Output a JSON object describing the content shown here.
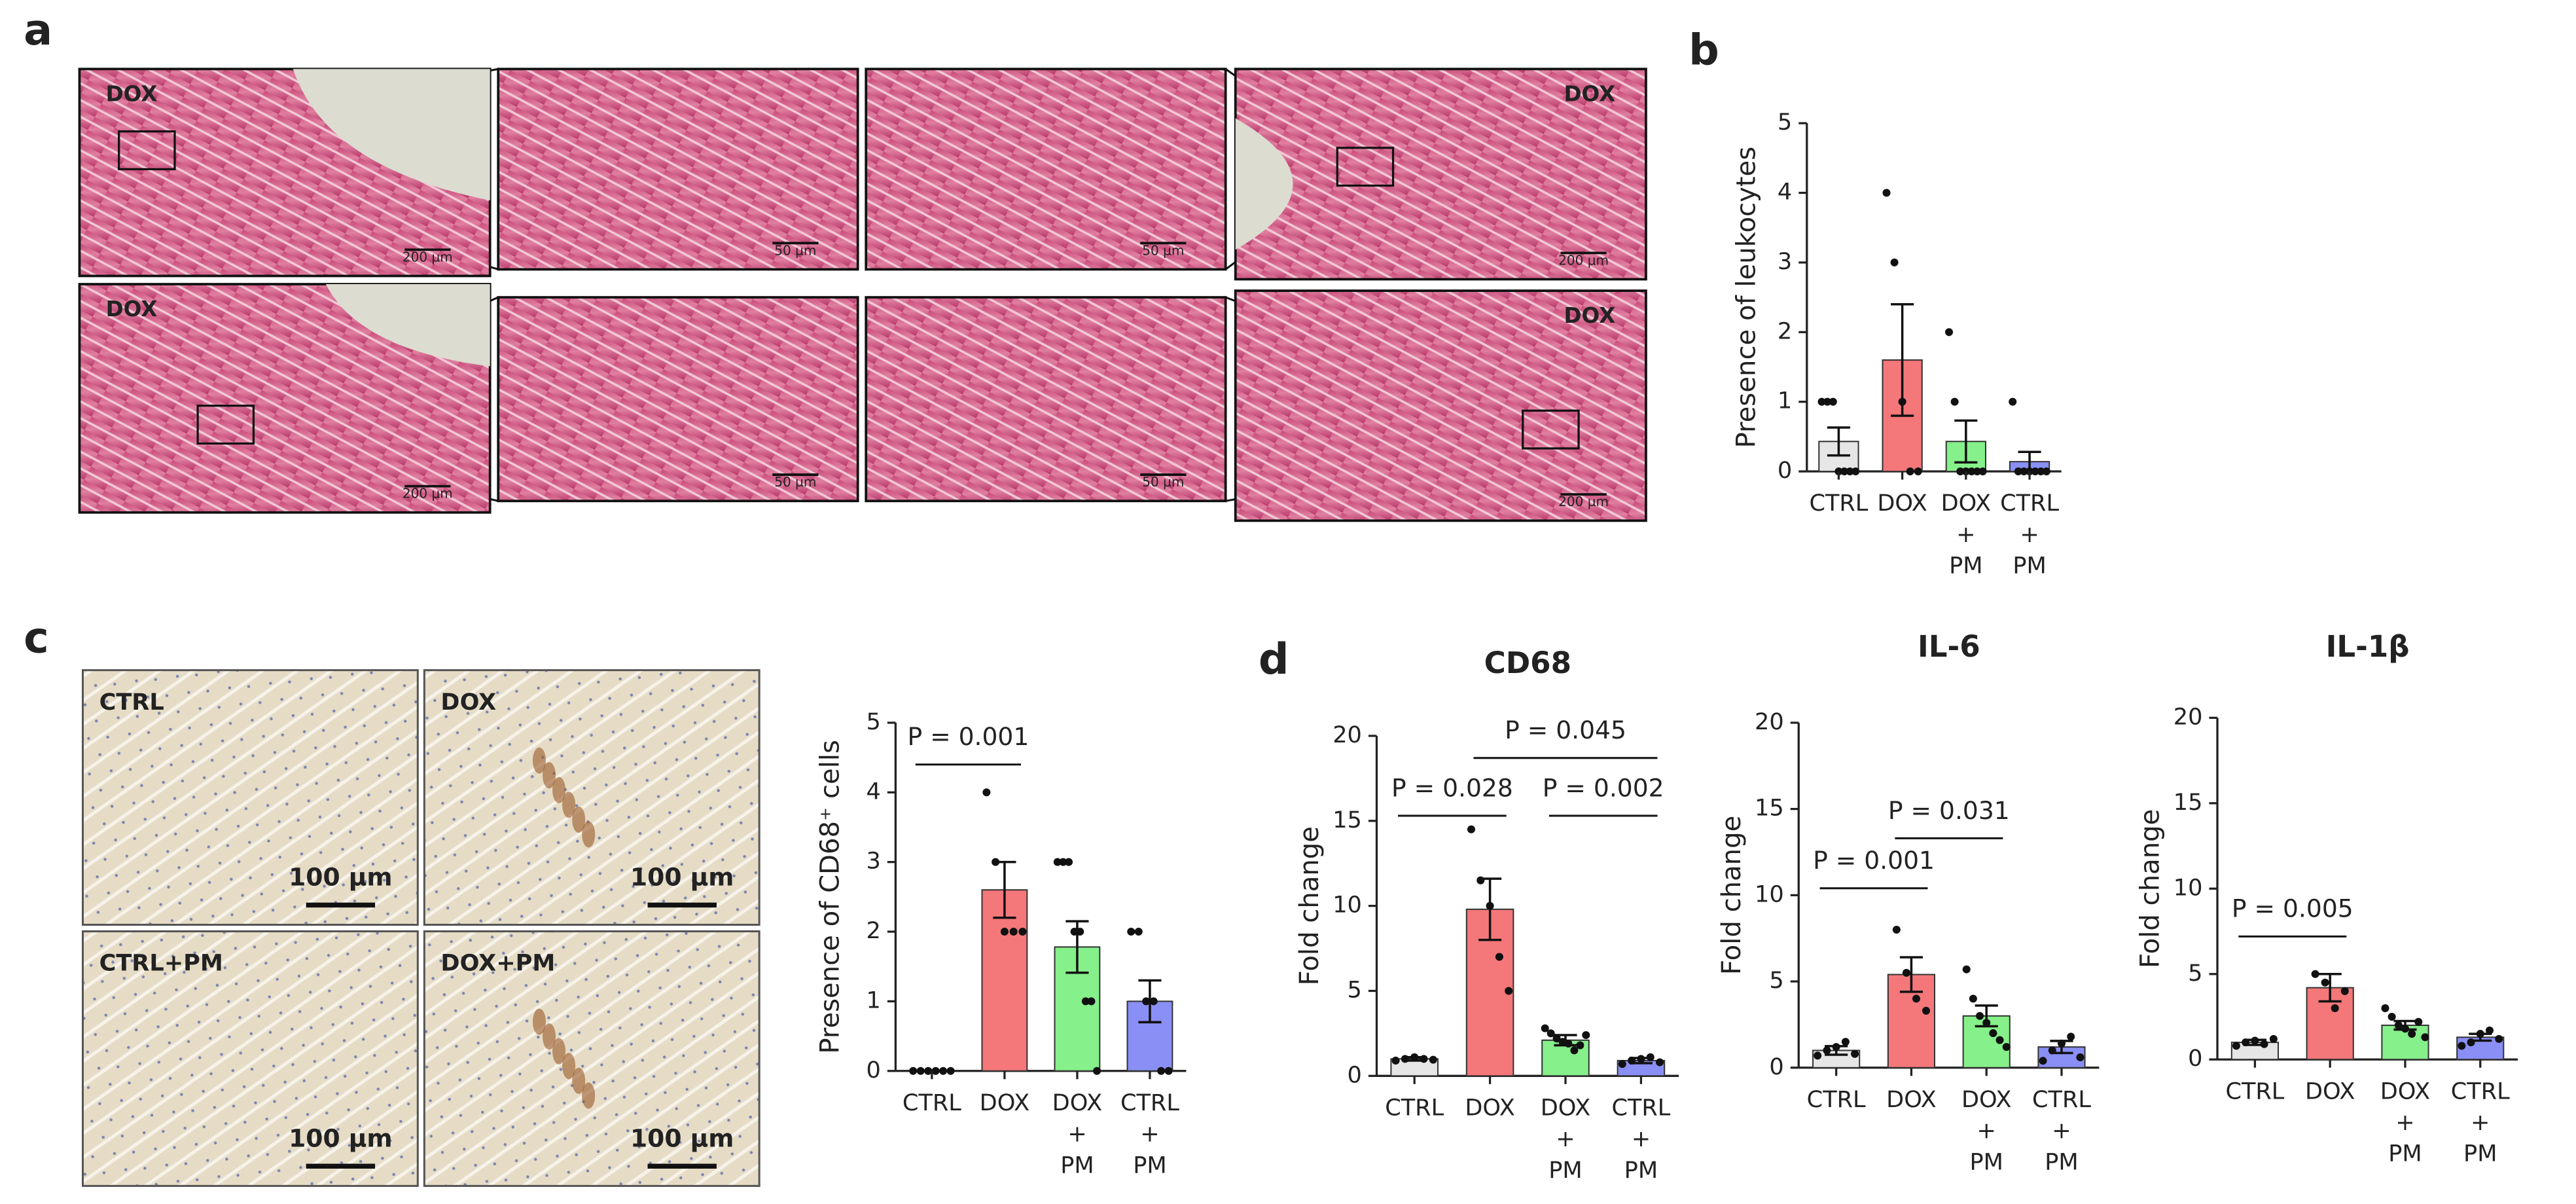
{
  "panel_labels": [
    "a",
    "b",
    "c",
    "d"
  ],
  "panel_a": {
    "images": [
      {
        "label": "DOX",
        "scale": "200 µm"
      },
      {
        "scale": "50 µm"
      },
      {
        "scale": "50 µm"
      },
      {
        "label": "DOX",
        "scale": "200 µm"
      },
      {
        "label": "DOX",
        "scale": "200 µm"
      },
      {
        "scale": "50 µm"
      },
      {
        "scale": "50 µm"
      },
      {
        "label": "DOX",
        "scale": "200 µm"
      }
    ]
  },
  "panel_c": {
    "images": [
      {
        "label": "CTRL",
        "scale": "100 µm"
      },
      {
        "label": "DOX",
        "scale": "100 µm"
      },
      {
        "label": "CTRL+PM",
        "scale": "100 µm"
      },
      {
        "label": "DOX+PM",
        "scale": "100 µm"
      }
    ]
  },
  "chart_data": [
    {
      "type": "bar",
      "y_label": "Presence of leukocytes",
      "categories": [
        [
          "CTRL"
        ],
        [
          "DOX"
        ],
        [
          "DOX",
          "+",
          "PM"
        ],
        [
          "CTRL",
          "+",
          "PM"
        ]
      ],
      "colors": [
        "#e6e6e6",
        "#f4777a",
        "#86f08a",
        "#8a8ff5"
      ],
      "values": [
        0.43,
        1.6,
        0.43,
        0.14
      ],
      "errors": [
        0.2,
        0.8,
        0.3,
        0.14
      ],
      "points": [
        [
          1,
          1,
          1,
          0,
          0,
          0,
          0
        ],
        [
          4,
          3,
          1,
          0,
          0
        ],
        [
          2,
          1,
          0,
          0,
          0,
          0,
          0
        ],
        [
          1,
          0,
          0,
          0,
          0,
          0,
          0
        ]
      ],
      "ylim": [
        0,
        5
      ],
      "yticks": [
        0,
        1,
        2,
        3,
        4,
        5
      ],
      "annotations": []
    },
    {
      "type": "bar",
      "y_label": "Presence of CD68⁺ cells",
      "categories": [
        [
          "CTRL"
        ],
        [
          "DOX"
        ],
        [
          "DOX",
          "+",
          "PM"
        ],
        [
          "CTRL",
          "+",
          "PM"
        ]
      ],
      "colors": [
        "#e6e6e6",
        "#f4777a",
        "#86f08a",
        "#8a8ff5"
      ],
      "values": [
        0,
        2.6,
        1.78,
        1.0
      ],
      "errors": [
        0,
        0.4,
        0.37,
        0.3
      ],
      "points": [
        [
          0,
          0,
          0,
          0,
          0,
          0
        ],
        [
          4,
          3,
          2,
          2,
          2
        ],
        [
          3,
          3,
          3,
          2,
          2,
          1,
          1,
          0
        ],
        [
          2,
          2,
          1,
          1,
          0,
          0
        ]
      ],
      "ylim": [
        0,
        5
      ],
      "yticks": [
        0,
        1,
        2,
        3,
        4,
        5
      ],
      "annotations": [
        {
          "label": "P = 0.001",
          "between": [
            0,
            1
          ],
          "y": 4.4
        }
      ]
    },
    {
      "type": "bar",
      "title": "CD68",
      "y_label": "Fold change",
      "categories": [
        [
          "CTRL"
        ],
        [
          "DOX"
        ],
        [
          "DOX",
          "+",
          "PM"
        ],
        [
          "CTRL",
          "+",
          "PM"
        ]
      ],
      "colors": [
        "#e6e6e6",
        "#f4777a",
        "#86f08a",
        "#8a8ff5"
      ],
      "values": [
        1.0,
        9.8,
        2.1,
        0.9
      ],
      "errors": [
        0.1,
        1.8,
        0.3,
        0.15
      ],
      "points": [
        [
          0.9,
          1,
          1.1,
          1,
          0.95
        ],
        [
          14.5,
          11.5,
          10,
          7,
          5
        ],
        [
          2.8,
          2.5,
          2.2,
          2,
          1.9,
          1.5,
          1.8,
          2.4
        ],
        [
          0.7,
          0.9,
          1,
          1.1,
          0.8
        ]
      ],
      "ylim": [
        0,
        20
      ],
      "yticks": [
        0,
        5,
        10,
        15,
        20
      ],
      "annotations": [
        {
          "label": "P = 0.028",
          "between": [
            0,
            1
          ],
          "y": 15.3
        },
        {
          "label": "P = 0.045",
          "between": [
            1,
            3
          ],
          "y": 18.7
        },
        {
          "label": "P = 0.002",
          "between": [
            2,
            3
          ],
          "y": 15.3
        }
      ]
    },
    {
      "type": "bar",
      "title": "IL-6",
      "y_label": "Fold change",
      "categories": [
        [
          "CTRL"
        ],
        [
          "DOX"
        ],
        [
          "DOX",
          "+",
          "PM"
        ],
        [
          "CTRL",
          "+",
          "PM"
        ]
      ],
      "colors": [
        "#e6e6e6",
        "#f4777a",
        "#86f08a",
        "#8a8ff5"
      ],
      "values": [
        1.0,
        5.4,
        3.0,
        1.2
      ],
      "errors": [
        0.25,
        1.0,
        0.6,
        0.35
      ],
      "points": [
        [
          0.7,
          1,
          1.2,
          1.5,
          0.8
        ],
        [
          8,
          5.5,
          4,
          3.3
        ],
        [
          5.7,
          4,
          3,
          2.6,
          2,
          1.6,
          1.2
        ],
        [
          0.4,
          1,
          1.4,
          1.8,
          0.6
        ]
      ],
      "ylim": [
        0,
        20
      ],
      "yticks": [
        0,
        5,
        10,
        15,
        20
      ],
      "annotations": [
        {
          "label": "P = 0.001",
          "between": [
            0,
            1
          ],
          "y": 10.4
        },
        {
          "label": "P = 0.031",
          "between": [
            1,
            2
          ],
          "y": 13.3
        }
      ]
    },
    {
      "type": "bar",
      "title": "IL-1β",
      "y_label": "Fold change",
      "categories": [
        [
          "CTRL"
        ],
        [
          "DOX"
        ],
        [
          "DOX",
          "+",
          "PM"
        ],
        [
          "CTRL",
          "+",
          "PM"
        ]
      ],
      "colors": [
        "#e6e6e6",
        "#f4777a",
        "#86f08a",
        "#8a8ff5"
      ],
      "values": [
        1.0,
        4.2,
        2.0,
        1.3
      ],
      "errors": [
        0.15,
        0.8,
        0.25,
        0.2
      ],
      "points": [
        [
          0.8,
          1,
          1.1,
          0.9,
          1.2
        ],
        [
          5,
          4.5,
          3,
          4
        ],
        [
          3,
          2.5,
          2,
          1.8,
          1.5,
          2.2,
          1.3
        ],
        [
          0.8,
          1,
          1.5,
          1.7,
          1.2
        ]
      ],
      "ylim": [
        0,
        20
      ],
      "yticks": [
        0,
        5,
        10,
        15,
        20
      ],
      "annotations": [
        {
          "label": "P = 0.005",
          "between": [
            0,
            1
          ],
          "y": 7.2
        }
      ]
    }
  ]
}
